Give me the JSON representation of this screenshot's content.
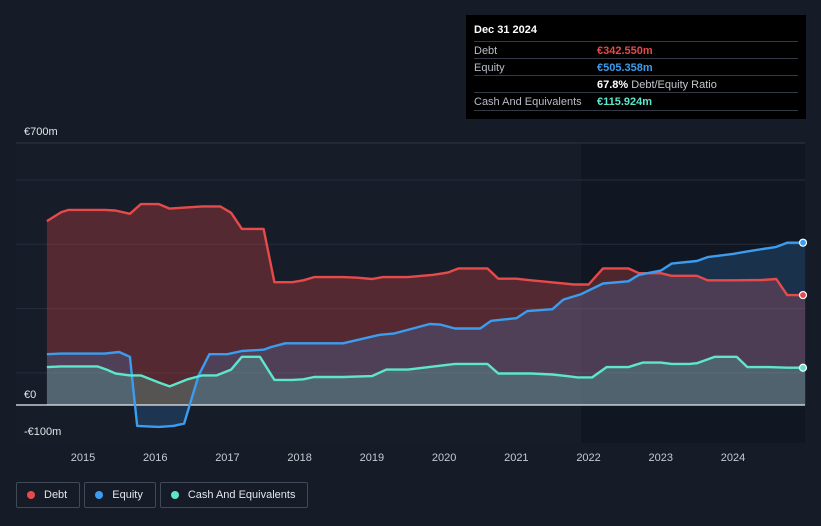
{
  "tooltip": {
    "date": "Dec 31 2024",
    "rows": [
      {
        "label": "Debt",
        "value": "€342.550m",
        "color": "#e64a4a"
      },
      {
        "label": "Equity",
        "value": "€505.358m",
        "color": "#3b9df0"
      },
      {
        "label": "",
        "value": "67.8%",
        "suffix": "Debt/Equity Ratio",
        "color": "#ffffff"
      },
      {
        "label": "Cash And Equivalents",
        "value": "€115.924m",
        "color": "#5ee6cc"
      }
    ]
  },
  "legend": [
    {
      "label": "Debt",
      "color": "#e64a4a"
    },
    {
      "label": "Equity",
      "color": "#3b9df0"
    },
    {
      "label": "Cash And Equivalents",
      "color": "#5ee6cc"
    }
  ],
  "chart_data": {
    "type": "area",
    "y_tick_labels": [
      {
        "value": 700,
        "label": "€700m"
      },
      {
        "value": 0,
        "label": "€0"
      },
      {
        "value": -100,
        "label": "-€100m"
      }
    ],
    "ylim": [
      -100,
      700
    ],
    "xlim": [
      2014.5,
      2025.0
    ],
    "x_ticks": [
      2015,
      2016,
      2017,
      2018,
      2019,
      2020,
      2021,
      2022,
      2023,
      2024
    ],
    "grid": true,
    "legend_position": "bottom-left",
    "highlight_after": 2021.9,
    "series": [
      {
        "name": "Debt",
        "color": "#e64a4a",
        "x": [
          2014.5,
          2014.7,
          2014.8,
          2015.3,
          2015.45,
          2015.65,
          2015.8,
          2016.05,
          2016.2,
          2016.65,
          2016.9,
          2017.05,
          2017.2,
          2017.5,
          2017.65,
          2017.9,
          2018.05,
          2018.2,
          2018.6,
          2018.8,
          2019.0,
          2019.15,
          2019.5,
          2019.85,
          2020.05,
          2020.2,
          2020.4,
          2020.6,
          2020.75,
          2021.0,
          2021.2,
          2021.35,
          2021.8,
          2022.0,
          2022.2,
          2022.55,
          2022.7,
          2023.0,
          2023.15,
          2023.5,
          2023.65,
          2024.0,
          2024.4,
          2024.6,
          2024.75,
          2025.0
        ],
        "values": [
          572,
          600,
          607,
          607,
          605,
          595,
          625,
          625,
          611,
          618,
          618,
          598,
          548,
          548,
          382,
          382,
          388,
          398,
          398,
          396,
          392,
          398,
          398,
          405,
          412,
          425,
          425,
          425,
          393,
          393,
          388,
          385,
          375,
          375,
          425,
          425,
          410,
          410,
          402,
          402,
          388,
          388,
          389,
          392,
          342,
          342
        ]
      },
      {
        "name": "Equity",
        "color": "#3b9df0",
        "x": [
          2014.5,
          2014.7,
          2015.3,
          2015.5,
          2015.65,
          2015.75,
          2016.05,
          2016.25,
          2016.4,
          2016.6,
          2016.75,
          2017.0,
          2017.2,
          2017.5,
          2017.6,
          2017.8,
          2018.3,
          2018.6,
          2019.1,
          2019.3,
          2019.6,
          2019.8,
          2019.95,
          2020.15,
          2020.5,
          2020.65,
          2021.0,
          2021.15,
          2021.5,
          2021.65,
          2021.9,
          2022.2,
          2022.55,
          2022.7,
          2023.0,
          2023.15,
          2023.5,
          2023.65,
          2024.0,
          2024.2,
          2024.6,
          2024.75,
          2025.0
        ],
        "values": [
          158,
          160,
          160,
          165,
          150,
          -65,
          -68,
          -65,
          -58,
          92,
          158,
          158,
          168,
          172,
          180,
          192,
          192,
          192,
          218,
          222,
          240,
          252,
          250,
          238,
          238,
          262,
          270,
          292,
          298,
          328,
          345,
          378,
          385,
          405,
          418,
          440,
          448,
          460,
          470,
          478,
          492,
          505,
          505
        ]
      },
      {
        "name": "Cash And Equivalents",
        "color": "#5ee6cc",
        "x": [
          2014.5,
          2014.7,
          2015.2,
          2015.35,
          2015.45,
          2015.65,
          2015.8,
          2016.05,
          2016.2,
          2016.45,
          2016.65,
          2016.85,
          2017.05,
          2017.2,
          2017.45,
          2017.65,
          2017.9,
          2018.05,
          2018.2,
          2018.6,
          2019.0,
          2019.2,
          2019.5,
          2020.15,
          2020.35,
          2020.6,
          2020.75,
          2021.0,
          2021.2,
          2021.5,
          2021.7,
          2021.85,
          2022.05,
          2022.25,
          2022.55,
          2022.75,
          2023.0,
          2023.15,
          2023.4,
          2023.5,
          2023.75,
          2024.05,
          2024.2,
          2024.5,
          2024.75,
          2025.0
        ],
        "values": [
          118,
          120,
          120,
          108,
          98,
          92,
          92,
          70,
          58,
          80,
          92,
          92,
          110,
          150,
          150,
          78,
          78,
          80,
          87,
          87,
          90,
          110,
          110,
          128,
          128,
          128,
          98,
          98,
          98,
          95,
          90,
          86,
          86,
          118,
          118,
          132,
          132,
          128,
          128,
          130,
          150,
          150,
          118,
          118,
          116,
          116
        ]
      }
    ]
  }
}
